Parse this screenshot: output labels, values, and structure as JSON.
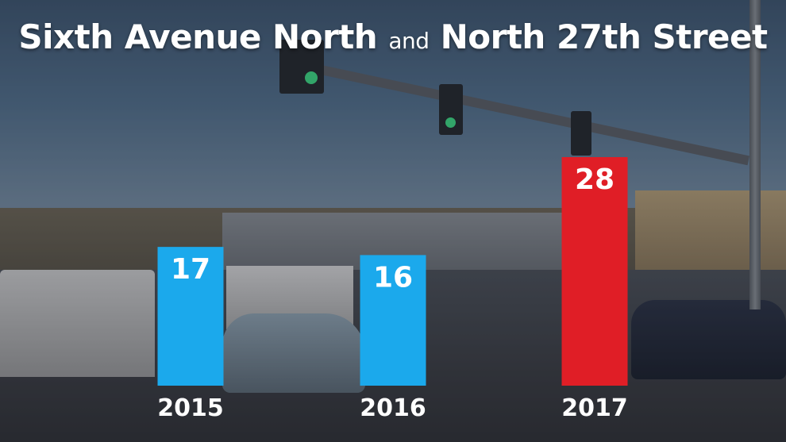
{
  "title": {
    "part1": "Sixth Avenue North",
    "conjunction": "and",
    "part2": "North 27th Street"
  },
  "chart_data": {
    "type": "bar",
    "categories": [
      "2015",
      "2016",
      "2017"
    ],
    "values": [
      17,
      16,
      28
    ],
    "colors": [
      "#1ba9ec",
      "#1ba9ec",
      "#e01e26"
    ],
    "ylim": [
      0,
      30
    ],
    "grid": false,
    "legend": "none"
  },
  "colors": {
    "title_text": "#ffffff",
    "bar_blue": "#1ba9ec",
    "bar_red": "#e01e26"
  }
}
